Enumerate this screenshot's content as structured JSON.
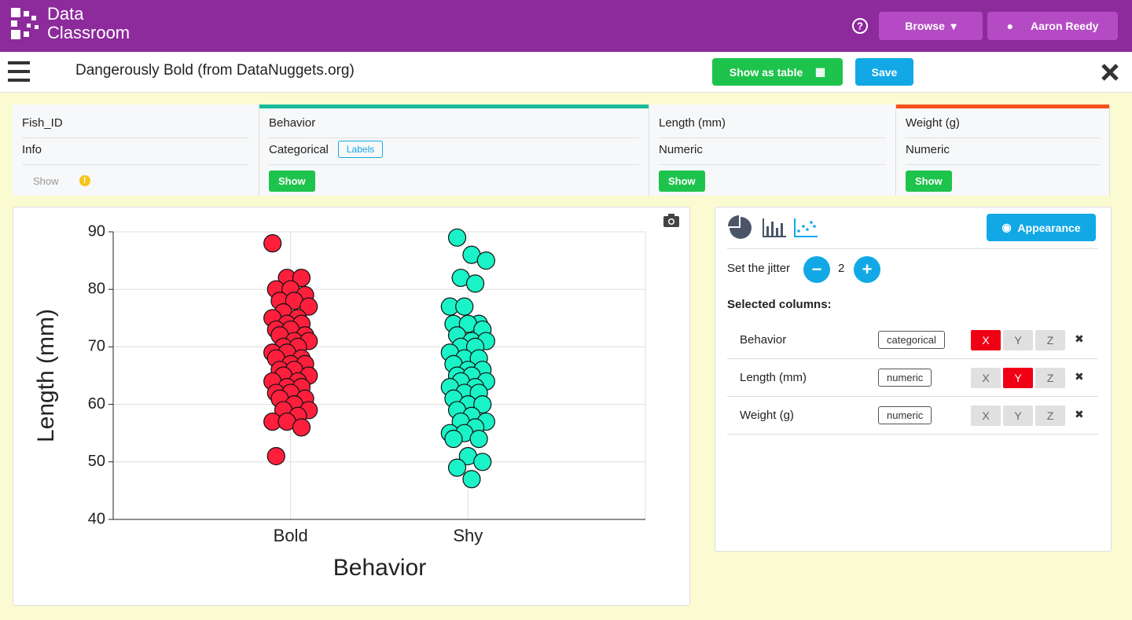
{
  "header": {
    "brand_top": "Data",
    "brand_bottom": "Classroom",
    "browse": "Browse",
    "user": "Aaron Reedy"
  },
  "toolbar": {
    "title": "Dangerously Bold (from DataNuggets.org)",
    "show_table": "Show as table",
    "save": "Save"
  },
  "columns": [
    {
      "name": "Fish_ID",
      "kind": "Info",
      "show": "Show"
    },
    {
      "name": "Behavior",
      "kind": "Categorical",
      "labels": "Labels",
      "show": "Show",
      "accent": "#1abc9c"
    },
    {
      "name": "Length (mm)",
      "kind": "Numeric",
      "show": "Show"
    },
    {
      "name": "Weight (g)",
      "kind": "Numeric",
      "show": "Show",
      "accent": "#f4511e"
    }
  ],
  "panel": {
    "appearance": "Appearance",
    "jitter_label": "Set the jitter",
    "jitter": 2,
    "selected_label": "Selected columns:",
    "axes": [
      "X",
      "Y",
      "Z"
    ],
    "rows": [
      {
        "name": "Behavior",
        "type": "categorical",
        "axis": "X"
      },
      {
        "name": "Length (mm)",
        "type": "numeric",
        "axis": "Y"
      },
      {
        "name": "Weight (g)",
        "type": "numeric"
      }
    ]
  },
  "chart_data": {
    "type": "strip",
    "xlabel": "Behavior",
    "ylabel": "Length (mm)",
    "categories": [
      "Bold",
      "Shy"
    ],
    "series": [
      {
        "color": "#fe1f3c",
        "values": [
          88,
          82,
          82,
          80,
          80,
          79,
          78,
          78,
          77,
          76,
          75,
          75,
          74,
          74,
          73,
          73,
          72,
          72,
          71,
          71,
          70,
          70,
          69,
          69,
          68,
          68,
          67,
          67,
          66,
          66,
          65,
          65,
          64,
          64,
          63,
          63,
          62,
          62,
          61,
          61,
          60,
          59,
          59,
          58,
          57,
          57,
          56,
          51
        ]
      },
      {
        "color": "#1af2c7",
        "values": [
          89,
          86,
          85,
          82,
          81,
          77,
          77,
          74,
          74,
          74,
          73,
          72,
          71,
          71,
          70,
          70,
          69,
          68,
          68,
          67,
          66,
          66,
          65,
          65,
          64,
          64,
          63,
          63,
          62,
          62,
          61,
          60,
          60,
          59,
          58,
          57,
          57,
          56,
          55,
          55,
          54,
          54,
          51,
          50,
          49,
          47
        ]
      }
    ],
    "ylim": [
      40,
      90
    ],
    "yticks": [
      40,
      50,
      60,
      70,
      80,
      90
    ],
    "grid": true
  }
}
